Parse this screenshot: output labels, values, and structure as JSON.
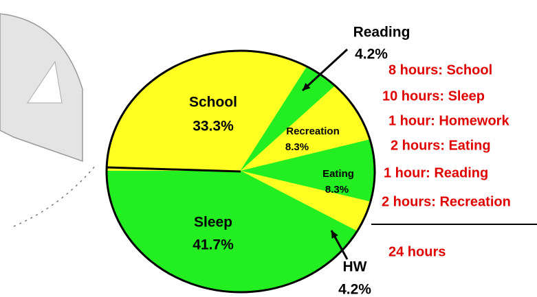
{
  "chart_data": {
    "type": "pie",
    "categories": [
      "School",
      "Reading",
      "Recreation",
      "Eating",
      "HW",
      "Sleep"
    ],
    "values": [
      33.3,
      4.2,
      8.3,
      8.3,
      4.2,
      41.7
    ],
    "value_labels": [
      "33.3%",
      "4.2%",
      "8.3%",
      "8.3%",
      "4.2%",
      "41.7%"
    ],
    "colors": [
      "#ffff22",
      "#22ee22",
      "#ffff22",
      "#22ee22",
      "#ffff22",
      "#22ee22"
    ],
    "breakdown": [
      "8 hours: School",
      "10 hours: Sleep",
      "1 hour: Homework",
      "2 hours: Eating",
      "1 hour: Reading",
      "2 hours: Recreation"
    ],
    "total": "24 hours"
  }
}
